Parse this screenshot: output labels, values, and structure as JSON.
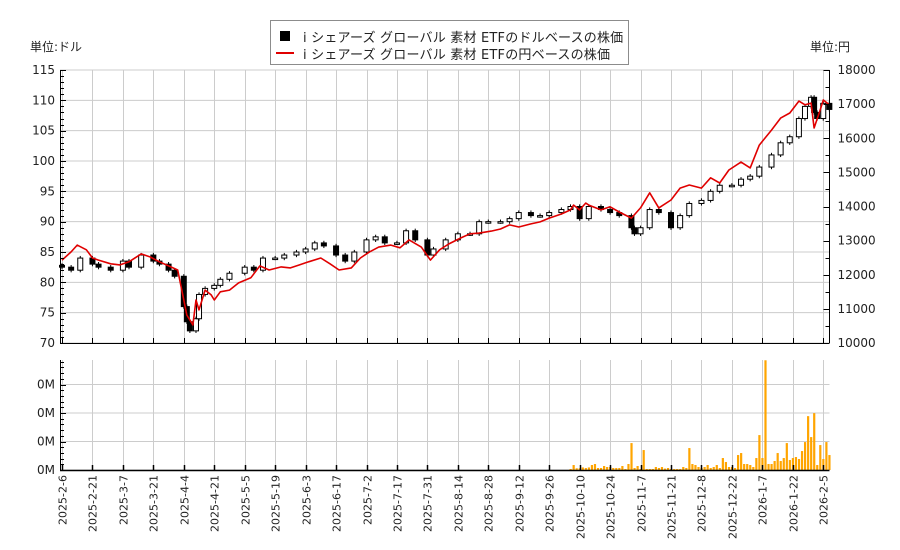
{
  "legend": {
    "items": [
      {
        "label": "i シェアーズ グローバル 素材 ETFのドルベースの株価",
        "marker": "black-square",
        "color": "#000000"
      },
      {
        "label": "i シェアーズ グローバル 素材 ETFの円ベースの株価",
        "marker": "red-line",
        "color": "#e00000"
      }
    ]
  },
  "units": {
    "left": "単位:ドル",
    "right": "単位:円"
  },
  "chart_data": [
    {
      "type": "line",
      "title": "",
      "subtitle": "",
      "xlabel": "",
      "ylabel": "単位:ドル",
      "y2label": "単位:円",
      "ylim": [
        70,
        115
      ],
      "y2lim": [
        10000,
        18000
      ],
      "yticks": [
        70,
        75,
        80,
        85,
        90,
        95,
        100,
        105,
        110,
        115
      ],
      "y2ticks": [
        10000,
        11000,
        12000,
        13000,
        14000,
        15000,
        16000,
        17000,
        18000
      ],
      "grid": true,
      "legend_position": "top-center",
      "x_ticks": [
        {
          "idx": 0,
          "label": "2025-2-6"
        },
        {
          "idx": 10,
          "label": "2025-2-21"
        },
        {
          "idx": 20,
          "label": "2025-3-7"
        },
        {
          "idx": 30,
          "label": "2025-3-21"
        },
        {
          "idx": 40,
          "label": "2025-4-4"
        },
        {
          "idx": 50,
          "label": "2025-4-21"
        },
        {
          "idx": 60,
          "label": "2025-5-5"
        },
        {
          "idx": 70,
          "label": "2025-5-19"
        },
        {
          "idx": 80,
          "label": "2025-6-3"
        },
        {
          "idx": 90,
          "label": "2025-6-17"
        },
        {
          "idx": 100,
          "label": "2025-7-2"
        },
        {
          "idx": 110,
          "label": "2025-7-17"
        },
        {
          "idx": 120,
          "label": "2025-7-31"
        },
        {
          "idx": 130,
          "label": "2025-8-14"
        },
        {
          "idx": 140,
          "label": "2025-8-28"
        },
        {
          "idx": 150,
          "label": "2025-9-12"
        },
        {
          "idx": 160,
          "label": "2025-9-26"
        },
        {
          "idx": 170,
          "label": "2025-10-10"
        },
        {
          "idx": 180,
          "label": "2025-10-24"
        },
        {
          "idx": 190,
          "label": "2025-11-7"
        },
        {
          "idx": 200,
          "label": "2025-11-21"
        },
        {
          "idx": 210,
          "label": "2025-12-8"
        },
        {
          "idx": 220,
          "label": "2025-12-22"
        },
        {
          "idx": 230,
          "label": "2026-1-7"
        },
        {
          "idx": 240,
          "label": "2026-1-22"
        },
        {
          "idx": 250,
          "label": "2026-2-5"
        }
      ],
      "series": [
        {
          "name": "i シェアーズ グローバル 素材 ETFのドルベースの株価",
          "style": "candlestick",
          "axis": "left",
          "color": "#000000",
          "x": [
            0,
            3,
            6,
            10,
            12,
            16,
            20,
            22,
            26,
            30,
            32,
            35,
            37,
            40,
            41,
            42,
            44,
            45,
            47,
            50,
            52,
            55,
            60,
            63,
            66,
            70,
            73,
            77,
            80,
            83,
            86,
            90,
            93,
            96,
            100,
            103,
            106,
            110,
            113,
            116,
            120,
            122,
            126,
            130,
            134,
            137,
            140,
            144,
            147,
            150,
            154,
            157,
            160,
            164,
            167,
            170,
            173,
            177,
            180,
            183,
            187,
            188,
            190,
            193,
            196,
            200,
            203,
            206,
            210,
            213,
            216,
            220,
            223,
            226,
            229,
            233,
            236,
            239,
            242,
            244,
            246,
            247,
            248,
            250,
            252
          ],
          "values": [
            82.5,
            82,
            84,
            83,
            82.5,
            82,
            83.5,
            82.5,
            84.5,
            83.5,
            83,
            82,
            81,
            76,
            73.5,
            72,
            74,
            78,
            79,
            79.5,
            80.5,
            81.5,
            82.5,
            82,
            84,
            84,
            84.5,
            85,
            85.5,
            86.5,
            86,
            84.5,
            83.5,
            85,
            87,
            87.5,
            86.5,
            86.5,
            88.5,
            87,
            84.5,
            85.5,
            87,
            88,
            88,
            90,
            90,
            90,
            90.5,
            91.5,
            91,
            91,
            91.5,
            92,
            92.5,
            90.5,
            92.5,
            92,
            91.5,
            91,
            89,
            88,
            89,
            92,
            91.5,
            89,
            91,
            93,
            93.5,
            95,
            96,
            96,
            97,
            97.5,
            99,
            101,
            103,
            104,
            107,
            109,
            110.5,
            108,
            107,
            109.5,
            108.5
          ]
        },
        {
          "name": "i シェアーズ グローバル 素材 ETFの円ベースの株価",
          "style": "line",
          "axis": "right",
          "color": "#e00000",
          "x": [
            0,
            3,
            5,
            8,
            10,
            12,
            16,
            19,
            22,
            26,
            29,
            32,
            35,
            38,
            40,
            41,
            43,
            44,
            45,
            47,
            49,
            50,
            52,
            55,
            58,
            62,
            65,
            68,
            72,
            75,
            78,
            81,
            85,
            88,
            91,
            95,
            98,
            101,
            104,
            108,
            111,
            114,
            118,
            121,
            124,
            127,
            131,
            134,
            137,
            141,
            144,
            147,
            150,
            154,
            157,
            160,
            164,
            167,
            168,
            170,
            172,
            173,
            177,
            180,
            183,
            187,
            190,
            193,
            196,
            200,
            203,
            206,
            210,
            213,
            216,
            219,
            223,
            226,
            229,
            233,
            236,
            239,
            242,
            244,
            246,
            247,
            249,
            250,
            252
          ],
          "values": [
            12430,
            12670,
            12870,
            12730,
            12490,
            12430,
            12320,
            12290,
            12380,
            12610,
            12520,
            12380,
            12260,
            12140,
            11260,
            10820,
            10530,
            11260,
            10970,
            11550,
            11410,
            11260,
            11500,
            11550,
            11760,
            11910,
            12260,
            12140,
            12230,
            12200,
            12290,
            12380,
            12490,
            12320,
            12140,
            12200,
            12490,
            12670,
            12810,
            12870,
            12790,
            13020,
            12810,
            12430,
            12730,
            12900,
            13080,
            13200,
            13220,
            13280,
            13340,
            13460,
            13400,
            13490,
            13550,
            13660,
            13780,
            13900,
            14040,
            13900,
            14100,
            14040,
            13900,
            13990,
            13840,
            13660,
            13960,
            14400,
            13960,
            14190,
            14540,
            14630,
            14540,
            14840,
            14690,
            15070,
            15300,
            15130,
            15800,
            16240,
            16590,
            16740,
            17090,
            16980,
            17030,
            16300,
            16830,
            17120,
            16980
          ]
        }
      ]
    },
    {
      "type": "bar",
      "title": "",
      "xlabel": "",
      "ylabel": "",
      "ylim": [
        0,
        386000
      ],
      "yticks": [
        0,
        100000,
        200000,
        300000
      ],
      "ytick_labels": [
        "0M",
        "0M",
        "0M",
        "0M"
      ],
      "grid": true,
      "series": [
        {
          "name": "出来高",
          "color": "#ffa500",
          "start_idx": 167,
          "values": [
            3500,
            17500,
            6000,
            6000,
            9000,
            7000,
            9000,
            17500,
            21000,
            7000,
            7000,
            14000,
            10500,
            10500,
            7000,
            7000,
            7000,
            14000,
            3500,
            21000,
            94500,
            7000,
            14000,
            3500,
            70000,
            3500,
            3500,
            3500,
            10500,
            7000,
            10500,
            5000,
            7000,
            3500,
            3500,
            3500,
            3500,
            10500,
            7000,
            77000,
            21000,
            17500,
            10500,
            7000,
            10500,
            17500,
            7000,
            10500,
            17500,
            7000,
            42000,
            28000,
            10500,
            10500,
            7000,
            52500,
            59500,
            21000,
            21000,
            17500,
            10500,
            42000,
            122500,
            42000,
            385000,
            21000,
            21000,
            31500,
            59500,
            31500,
            42000,
            94500,
            35000,
            42000,
            45500,
            38500,
            66500,
            98000,
            189000,
            115500,
            199500,
            17500,
            87500,
            38500,
            98000,
            52500
          ]
        }
      ]
    }
  ]
}
